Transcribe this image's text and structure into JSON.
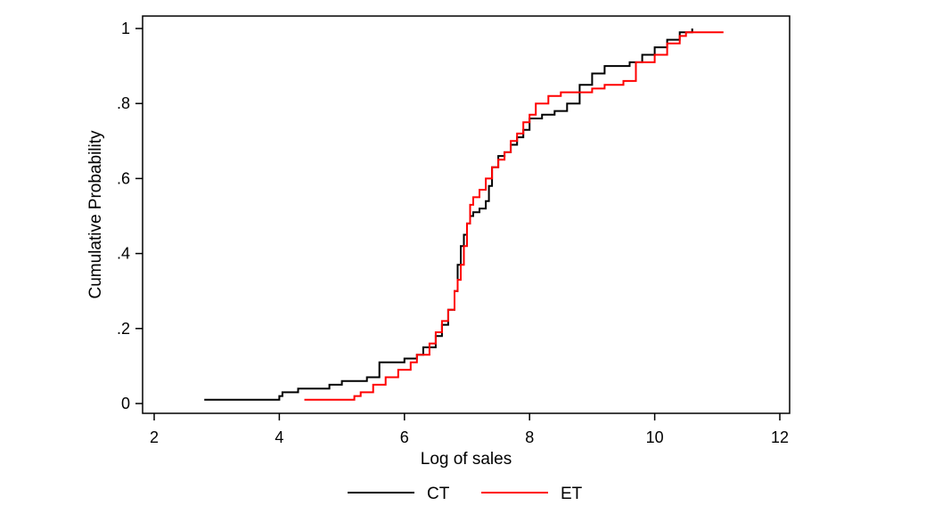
{
  "chart_data": {
    "type": "line",
    "xlabel": "Log of sales",
    "ylabel": "Cumulative Probability",
    "xlim": [
      2,
      12
    ],
    "ylim": [
      0,
      1
    ],
    "grid": false,
    "legend_position": "bottom",
    "x_ticks": [
      {
        "value": 2,
        "label": "2"
      },
      {
        "value": 4,
        "label": "4"
      },
      {
        "value": 6,
        "label": "6"
      },
      {
        "value": 8,
        "label": "8"
      },
      {
        "value": 10,
        "label": "10"
      },
      {
        "value": 12,
        "label": "12"
      }
    ],
    "y_ticks": [
      {
        "value": 0,
        "label": "0"
      },
      {
        "value": 0.2,
        "label": ".2"
      },
      {
        "value": 0.4,
        "label": ".4"
      },
      {
        "value": 0.6,
        "label": ".6"
      },
      {
        "value": 0.8,
        "label": ".8"
      },
      {
        "value": 1,
        "label": "1"
      }
    ],
    "series": [
      {
        "name": "CT",
        "color": "#000000",
        "x": [
          2.8,
          4.0,
          4.05,
          4.3,
          4.6,
          4.8,
          5.0,
          5.2,
          5.4,
          5.6,
          5.8,
          6.0,
          6.2,
          6.3,
          6.5,
          6.6,
          6.7,
          6.8,
          6.85,
          6.9,
          6.95,
          7.0,
          7.05,
          7.1,
          7.2,
          7.3,
          7.35,
          7.4,
          7.5,
          7.6,
          7.7,
          7.8,
          7.9,
          8.0,
          8.2,
          8.4,
          8.6,
          8.8,
          9.0,
          9.2,
          9.4,
          9.6,
          9.8,
          10.0,
          10.2,
          10.4,
          10.6
        ],
        "y": [
          0.01,
          0.02,
          0.03,
          0.04,
          0.04,
          0.05,
          0.06,
          0.06,
          0.07,
          0.11,
          0.11,
          0.12,
          0.13,
          0.15,
          0.18,
          0.21,
          0.25,
          0.3,
          0.37,
          0.42,
          0.45,
          0.48,
          0.5,
          0.51,
          0.52,
          0.54,
          0.58,
          0.63,
          0.66,
          0.67,
          0.69,
          0.71,
          0.73,
          0.76,
          0.77,
          0.78,
          0.8,
          0.85,
          0.88,
          0.9,
          0.9,
          0.91,
          0.93,
          0.95,
          0.97,
          0.99,
          1.0
        ]
      },
      {
        "name": "ET",
        "color": "#ff0000",
        "x": [
          4.4,
          5.2,
          5.3,
          5.5,
          5.7,
          5.9,
          6.1,
          6.2,
          6.4,
          6.5,
          6.6,
          6.7,
          6.8,
          6.85,
          6.9,
          6.95,
          7.0,
          7.05,
          7.1,
          7.2,
          7.3,
          7.4,
          7.5,
          7.6,
          7.7,
          7.8,
          7.9,
          8.0,
          8.1,
          8.3,
          8.5,
          8.7,
          9.0,
          9.2,
          9.5,
          9.7,
          10.0,
          10.2,
          10.4,
          10.5,
          11.1
        ],
        "y": [
          0.01,
          0.02,
          0.03,
          0.05,
          0.07,
          0.09,
          0.11,
          0.13,
          0.16,
          0.19,
          0.22,
          0.25,
          0.3,
          0.33,
          0.37,
          0.42,
          0.48,
          0.53,
          0.55,
          0.57,
          0.6,
          0.63,
          0.65,
          0.67,
          0.7,
          0.72,
          0.75,
          0.77,
          0.8,
          0.82,
          0.83,
          0.83,
          0.84,
          0.85,
          0.86,
          0.91,
          0.93,
          0.96,
          0.98,
          0.99,
          0.99
        ]
      }
    ]
  }
}
